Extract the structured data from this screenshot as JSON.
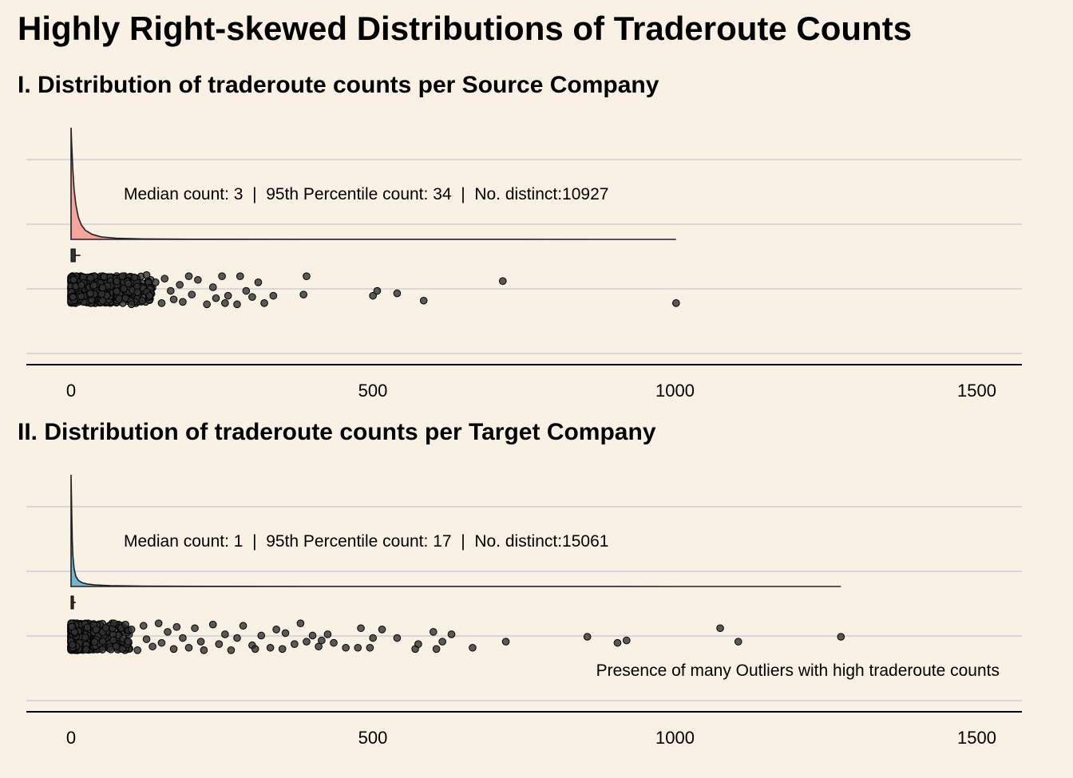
{
  "title": "Highly Right-skewed Distributions of Traderoute Counts",
  "x_ticks": [
    "0",
    "500",
    "1000",
    "1500"
  ],
  "colors": {
    "background": "#F8F1E4",
    "source_fill": "#F4A59E",
    "target_fill": "#74B4D1",
    "points": "#333333",
    "grid": "#D8D8D8"
  },
  "panels": [
    {
      "title": "I. Distribution of traderoute counts per Source Company",
      "annotation": "Median count: 3  |  95th Percentile count: 34  |  No. distinct:10927",
      "note": ""
    },
    {
      "title": "II. Distribution of traderoute counts per Target Company",
      "annotation": "Median count: 1  |  95th Percentile count: 17  |  No. distinct:15061",
      "note": "Presence of many Outliers with high traderoute counts"
    }
  ],
  "chart_data": [
    {
      "type": "raincloud",
      "title": "I. Distribution of traderoute counts per Source Company",
      "xlim": [
        0,
        1500
      ],
      "x_ticks": [
        0,
        500,
        1000,
        1500
      ],
      "fill_color": "#F4A59E",
      "median": 3,
      "p95": 34,
      "n_distinct": 10927,
      "max": 1002,
      "density": {
        "x": [
          0,
          1,
          3,
          5,
          8,
          12,
          17,
          24,
          35,
          50,
          75,
          120,
          200,
          400,
          700,
          1002
        ],
        "y": [
          1.0,
          0.86,
          0.62,
          0.45,
          0.31,
          0.2,
          0.13,
          0.08,
          0.045,
          0.022,
          0.01,
          0.004,
          0.0015,
          0.0005,
          0.0002,
          0
        ]
      },
      "outliers": {
        "x": [
          85,
          90,
          95,
          100,
          105,
          110,
          118,
          125,
          130,
          140,
          150,
          155,
          165,
          170,
          180,
          185,
          195,
          200,
          210,
          225,
          235,
          240,
          250,
          255,
          260,
          275,
          280,
          290,
          300,
          310,
          320,
          335,
          385,
          390,
          500,
          507,
          540,
          584,
          715,
          1002
        ],
        "y": [
          -0.55,
          0.35,
          -0.25,
          0.6,
          -0.5,
          0.1,
          0.45,
          -0.6,
          0.25,
          -0.3,
          0.55,
          -0.45,
          0.05,
          0.4,
          -0.2,
          0.5,
          -0.55,
          0.2,
          -0.4,
          0.6,
          -0.1,
          0.35,
          -0.55,
          0.55,
          0.25,
          0.6,
          -0.55,
          0.05,
          0.3,
          -0.3,
          0.55,
          0.25,
          0.2,
          -0.55,
          0.25,
          0.05,
          0.15,
          0.45,
          -0.35,
          0.55
        ]
      }
    },
    {
      "type": "raincloud",
      "title": "II. Distribution of traderoute counts per Target Company",
      "xlim": [
        0,
        1500
      ],
      "x_ticks": [
        0,
        500,
        1000,
        1500
      ],
      "fill_color": "#74B4D1",
      "median": 1,
      "p95": 17,
      "n_distinct": 15061,
      "max": 1275,
      "density": {
        "x": [
          0,
          1,
          2,
          3,
          5,
          8,
          12,
          18,
          27,
          40,
          65,
          120,
          250,
          600,
          1000,
          1275
        ],
        "y": [
          1.0,
          0.7,
          0.42,
          0.28,
          0.16,
          0.09,
          0.055,
          0.035,
          0.022,
          0.014,
          0.008,
          0.003,
          0.001,
          0.0004,
          0.0001,
          0
        ]
      },
      "outliers": {
        "x": [
          85,
          90,
          95,
          100,
          110,
          120,
          125,
          135,
          145,
          150,
          160,
          170,
          175,
          185,
          195,
          205,
          215,
          220,
          235,
          245,
          255,
          265,
          275,
          285,
          300,
          305,
          315,
          330,
          340,
          350,
          355,
          370,
          380,
          390,
          400,
          410,
          415,
          425,
          435,
          455,
          475,
          480,
          495,
          500,
          515,
          540,
          570,
          575,
          600,
          605,
          615,
          630,
          665,
          720,
          855,
          905,
          920,
          1075,
          1105,
          1275
        ],
        "y": [
          0.5,
          -0.5,
          0.2,
          -0.3,
          0.55,
          -0.45,
          0.1,
          0.4,
          -0.55,
          0.25,
          -0.2,
          0.5,
          -0.4,
          0.05,
          0.45,
          -0.35,
          0.2,
          0.55,
          -0.5,
          0.3,
          -0.1,
          0.55,
          0.05,
          -0.45,
          0.35,
          0.5,
          -0.05,
          0.45,
          -0.3,
          0.5,
          -0.15,
          0.3,
          -0.55,
          0.2,
          -0.05,
          0.4,
          0.15,
          -0.1,
          0.25,
          0.45,
          0.45,
          -0.35,
          0.45,
          0.05,
          -0.3,
          0.05,
          0.5,
          0.3,
          -0.2,
          0.5,
          0.2,
          -0.1,
          0.45,
          0.2,
          0.0,
          0.25,
          0.15,
          -0.35,
          0.2,
          0.0
        ]
      }
    }
  ]
}
